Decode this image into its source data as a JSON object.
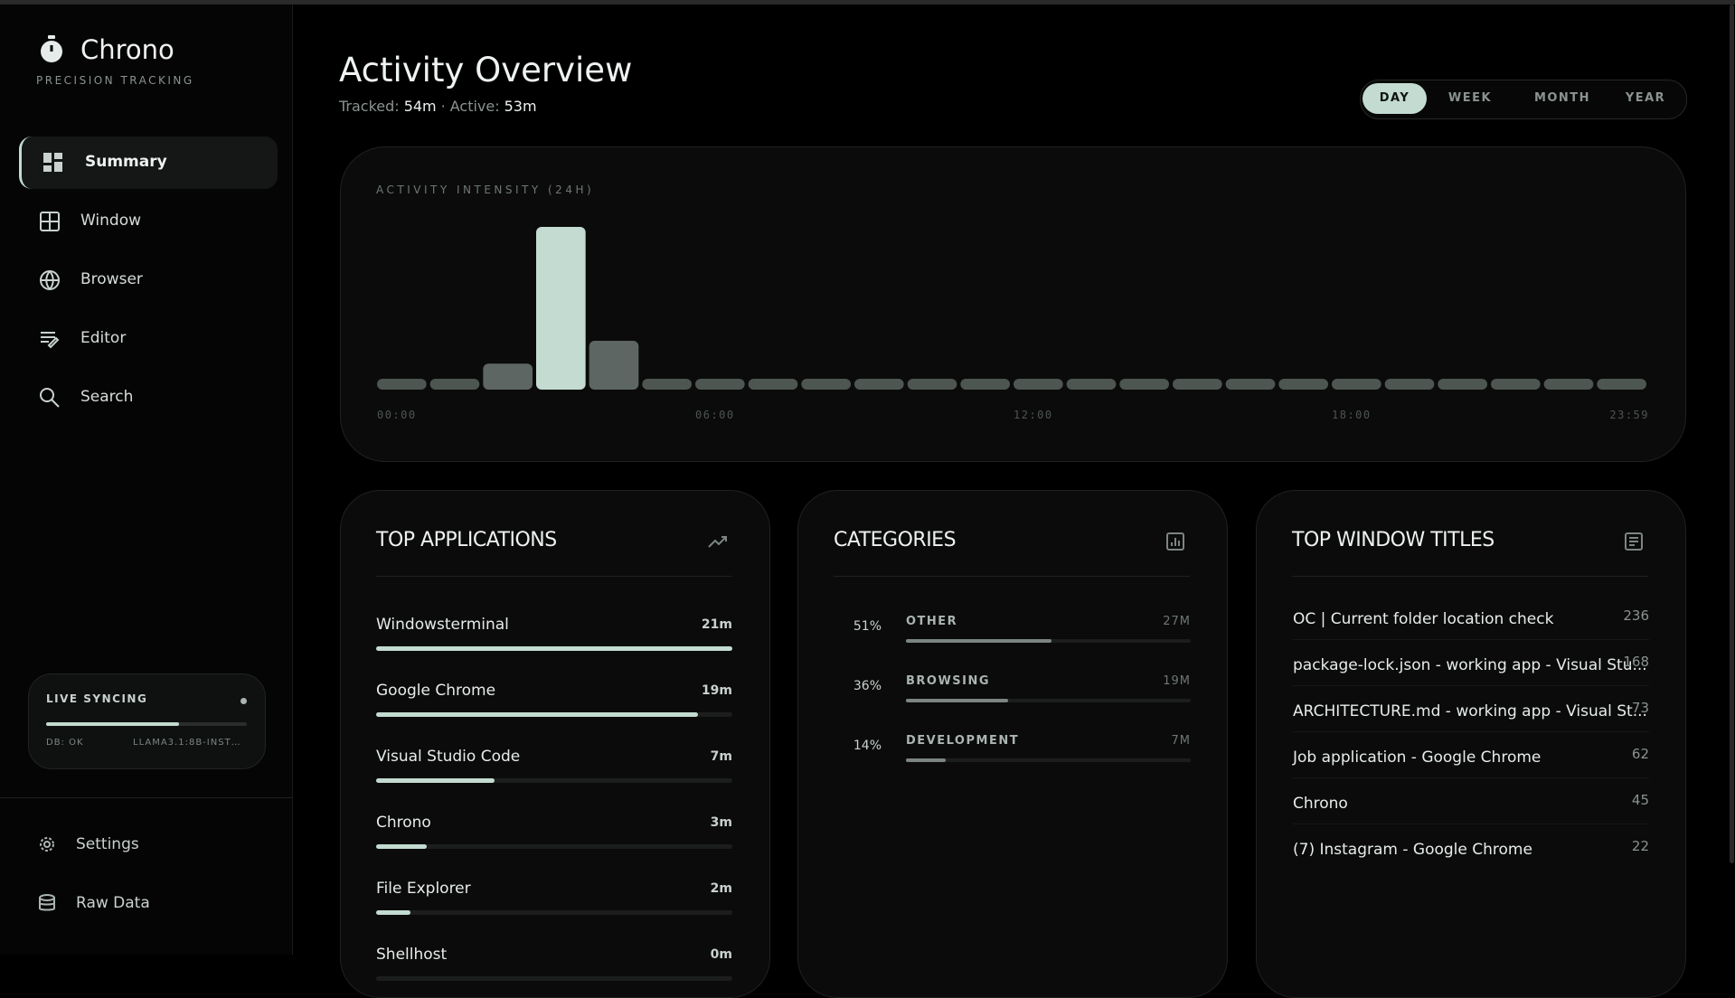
{
  "app": {
    "name": "Chrono",
    "tagline": "PRECISION TRACKING"
  },
  "nav": [
    "Summary",
    "Window",
    "Browser",
    "Editor",
    "Search"
  ],
  "sync": {
    "title": "LIVE SYNCING",
    "db": "DB: OK",
    "model": "LLAMA3.1:8B-INST…"
  },
  "footer_nav": [
    "Settings",
    "Raw Data"
  ],
  "header": {
    "title": "Activity Overview",
    "tracked_label": "Tracked:",
    "tracked": "54m",
    "separator": "·",
    "active_label": "Active:",
    "active": "53m"
  },
  "ranges": [
    "DAY",
    "WEEK",
    "MONTH",
    "YEAR"
  ],
  "chart_data": {
    "type": "bar",
    "title": "ACTIVITY INTENSITY (24H)",
    "categories": [
      "00:00",
      null,
      null,
      null,
      null,
      null,
      "06:00",
      null,
      null,
      null,
      null,
      null,
      "12:00",
      null,
      null,
      null,
      null,
      null,
      "18:00",
      null,
      null,
      null,
      null,
      "23:59"
    ],
    "values": [
      0,
      0,
      4,
      40,
      10,
      0,
      0,
      0,
      0,
      0,
      0,
      0,
      0,
      0,
      0,
      0,
      0,
      0,
      0,
      0,
      0,
      0,
      0,
      0
    ],
    "ylim": [
      0,
      40
    ],
    "color": "#66706b",
    "highlight_color": "#c3dbd0"
  },
  "top_applications": {
    "title": "TOP APPLICATIONS",
    "xlim": [
      0,
      21
    ],
    "items": [
      {
        "name": "Windowsterminal",
        "value": 21,
        "value_label": "21m"
      },
      {
        "name": "Google Chrome",
        "value": 19,
        "value_label": "19m"
      },
      {
        "name": "Visual Studio Code",
        "value": 7,
        "value_label": "7m"
      },
      {
        "name": "Chrono",
        "value": 3,
        "value_label": "3m"
      },
      {
        "name": "File Explorer",
        "value": 2,
        "value_label": "2m"
      },
      {
        "name": "Shellhost",
        "value": 0,
        "value_label": "0m"
      }
    ]
  },
  "categories": {
    "title": "CATEGORIES",
    "xlim": [
      0,
      100
    ],
    "items": [
      {
        "name": "OTHER",
        "share": 51,
        "share_label": "51%",
        "minutes": 27,
        "minutes_label": "27M"
      },
      {
        "name": "BROWSING",
        "share": 36,
        "share_label": "36%",
        "minutes": 19,
        "minutes_label": "19M"
      },
      {
        "name": "DEVELOPMENT",
        "share": 14,
        "share_label": "14%",
        "minutes": 7,
        "minutes_label": "7M"
      }
    ]
  },
  "top_window_titles": {
    "title": "TOP WINDOW TITLES",
    "items": [
      {
        "name": "OC | Current folder location check",
        "count": "236"
      },
      {
        "name": "package-lock.json - working app - Visual Stu...",
        "count": "168"
      },
      {
        "name": "ARCHITECTURE.md - working app - Visual St...",
        "count": "73"
      },
      {
        "name": "Job application - Google Chrome",
        "count": "62"
      },
      {
        "name": "Chrono",
        "count": "45"
      },
      {
        "name": "(7) Instagram - Google Chrome",
        "count": "22"
      }
    ]
  }
}
